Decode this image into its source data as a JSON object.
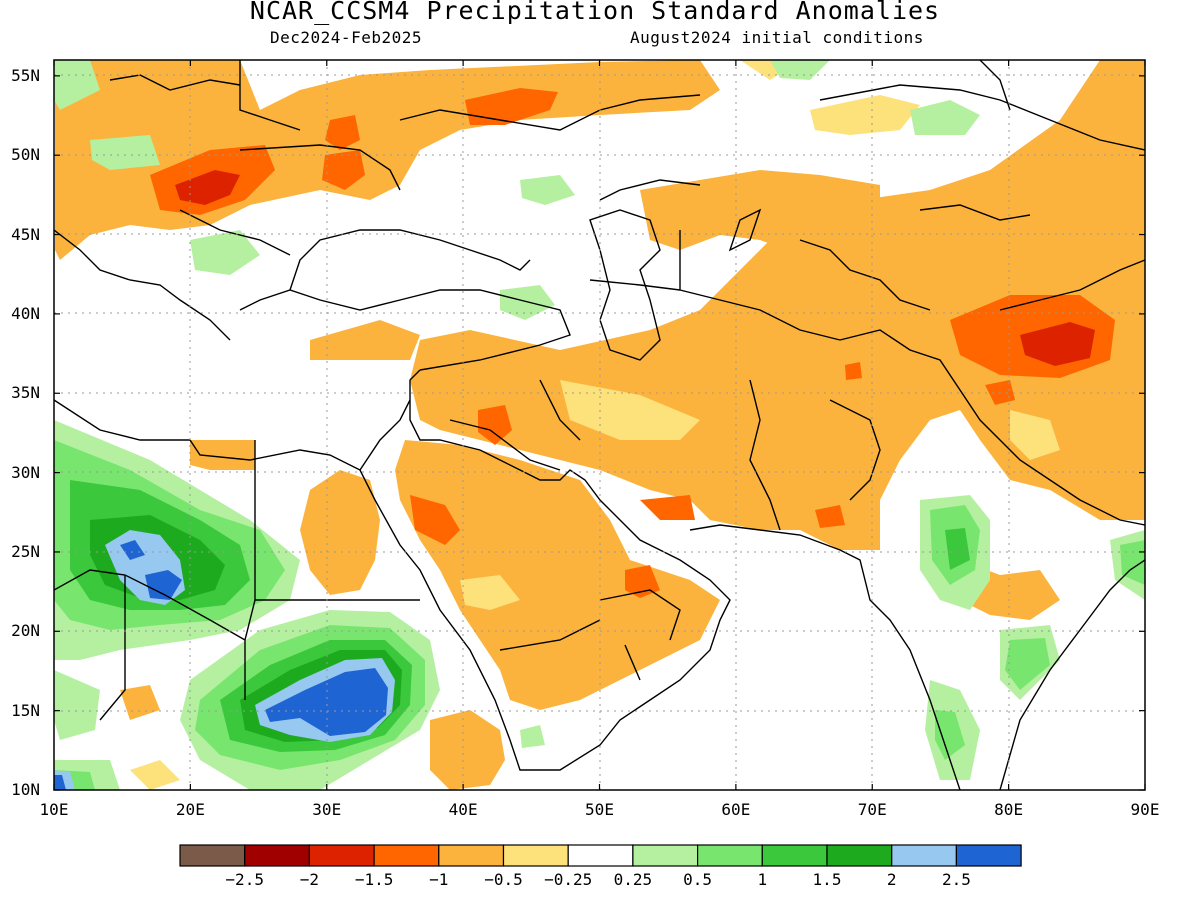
{
  "title": "NCAR_CCSM4 Precipitation Standard Anomalies",
  "period": "Dec2024-Feb2025",
  "init": "August2024 initial conditions",
  "map": {
    "lon_range": [
      10,
      90
    ],
    "lat_range": [
      10,
      56
    ],
    "lat_ticks": [
      {
        "value": 10,
        "label": "10N"
      },
      {
        "value": 15,
        "label": "15N"
      },
      {
        "value": 20,
        "label": "20N"
      },
      {
        "value": 25,
        "label": "25N"
      },
      {
        "value": 30,
        "label": "30N"
      },
      {
        "value": 35,
        "label": "35N"
      },
      {
        "value": 40,
        "label": "40N"
      },
      {
        "value": 45,
        "label": "45N"
      },
      {
        "value": 50,
        "label": "50N"
      },
      {
        "value": 55,
        "label": "55N"
      }
    ],
    "lon_ticks": [
      {
        "value": 10,
        "label": "10E"
      },
      {
        "value": 20,
        "label": "20E"
      },
      {
        "value": 30,
        "label": "30E"
      },
      {
        "value": 40,
        "label": "40E"
      },
      {
        "value": 50,
        "label": "50E"
      },
      {
        "value": 60,
        "label": "60E"
      },
      {
        "value": 70,
        "label": "70E"
      },
      {
        "value": 80,
        "label": "80E"
      },
      {
        "value": 90,
        "label": "90E"
      }
    ],
    "grid": "dotted"
  },
  "colorbar": {
    "colors": [
      "#7b5a4a",
      "#a00000",
      "#dd2200",
      "#ff6600",
      "#fbb33d",
      "#fde17a",
      "#ffffff",
      "#b4f0a0",
      "#78e66e",
      "#3cc83c",
      "#1eaa1e",
      "#96c8f0",
      "#1e64d2"
    ],
    "labels": [
      "−2.5",
      "−2",
      "−1.5",
      "−1",
      "−0.5",
      "−0.25",
      "0.25",
      "0.5",
      "1",
      "1.5",
      "2",
      "2.5"
    ]
  }
}
